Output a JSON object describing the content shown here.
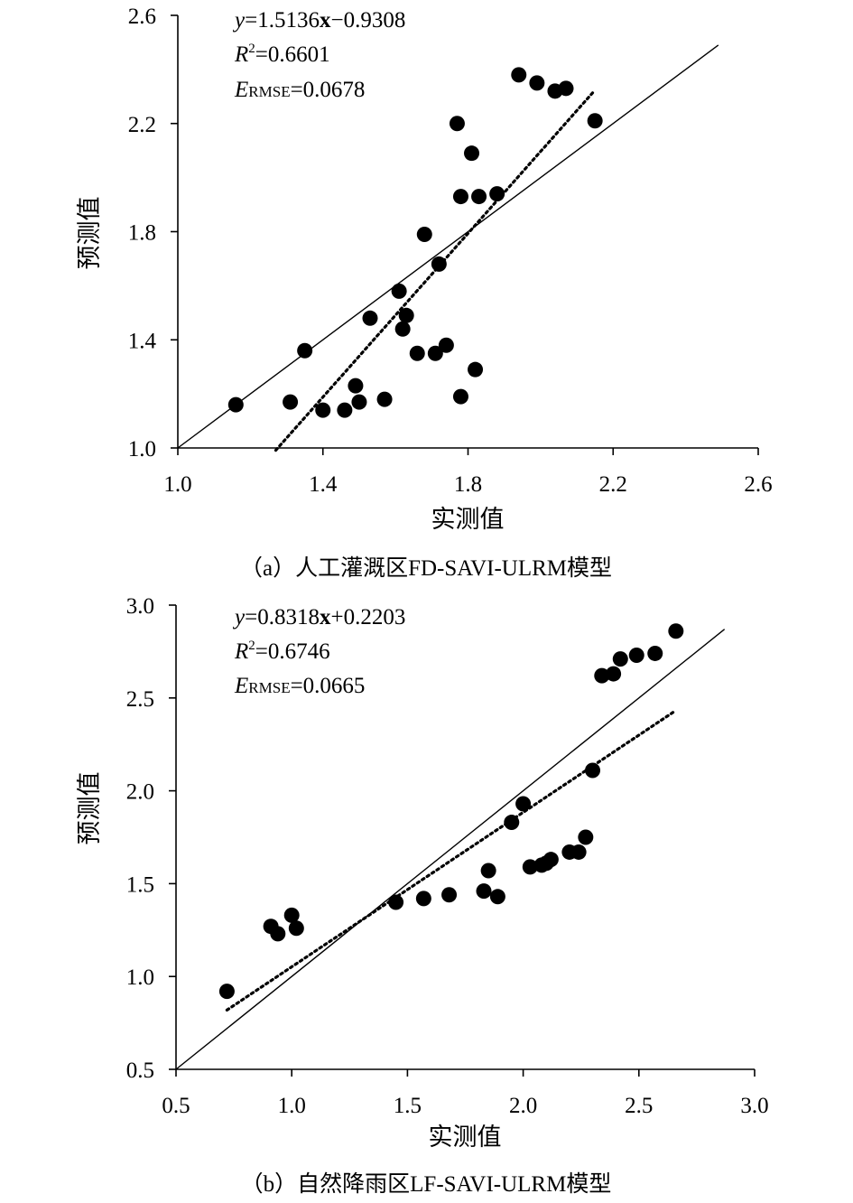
{
  "chart_data": [
    {
      "type": "scatter",
      "caption": "（a）人工灌溉区FD-SAVI-ULRM模型",
      "xlabel": "实测值",
      "ylabel": "预测值",
      "xlim": [
        1.0,
        2.6
      ],
      "ylim": [
        1.0,
        2.6
      ],
      "xticks": [
        "1.0",
        "1.4",
        "1.8",
        "2.2",
        "2.6"
      ],
      "yticks": [
        "1.0",
        "1.4",
        "1.8",
        "2.2",
        "2.6"
      ],
      "annotations": {
        "equation": {
          "y": "y",
          "eq_mid": "=1.5136",
          "x": "x",
          "eq_end": "−0.9308"
        },
        "r2": {
          "r": "R",
          "sup": "2",
          "value": "=0.6601"
        },
        "rmse": {
          "e": "E",
          "sub": "RMSE",
          "value": "=0.0678"
        }
      },
      "fit_line": {
        "slope": 1.5136,
        "intercept": -0.9308,
        "x_range": [
          1.27,
          2.15
        ]
      },
      "reference_line": {
        "slope": 1,
        "intercept": 0,
        "x_range": [
          1.0,
          2.49
        ]
      },
      "points": [
        [
          1.16,
          1.16
        ],
        [
          1.31,
          1.17
        ],
        [
          1.35,
          1.36
        ],
        [
          1.4,
          1.14
        ],
        [
          1.46,
          1.14
        ],
        [
          1.49,
          1.23
        ],
        [
          1.5,
          1.17
        ],
        [
          1.53,
          1.48
        ],
        [
          1.57,
          1.18
        ],
        [
          1.61,
          1.58
        ],
        [
          1.62,
          1.44
        ],
        [
          1.63,
          1.49
        ],
        [
          1.66,
          1.35
        ],
        [
          1.68,
          1.79
        ],
        [
          1.71,
          1.35
        ],
        [
          1.72,
          1.68
        ],
        [
          1.74,
          1.38
        ],
        [
          1.77,
          2.2
        ],
        [
          1.78,
          1.19
        ],
        [
          1.78,
          1.93
        ],
        [
          1.81,
          2.09
        ],
        [
          1.82,
          1.29
        ],
        [
          1.83,
          1.93
        ],
        [
          1.88,
          1.94
        ],
        [
          1.94,
          2.38
        ],
        [
          1.99,
          2.35
        ],
        [
          2.04,
          2.32
        ],
        [
          2.07,
          2.33
        ],
        [
          2.15,
          2.21
        ]
      ]
    },
    {
      "type": "scatter",
      "caption": "（b）自然降雨区LF-SAVI-ULRM模型",
      "xlabel": "实测值",
      "ylabel": "预测值",
      "xlim": [
        0.5,
        3.0
      ],
      "ylim": [
        0.5,
        3.0
      ],
      "xticks": [
        "0.5",
        "1.0",
        "1.5",
        "2.0",
        "2.5",
        "3.0"
      ],
      "yticks": [
        "0.5",
        "1.0",
        "1.5",
        "2.0",
        "2.5",
        "3.0"
      ],
      "annotations": {
        "equation": {
          "y": "y",
          "eq_mid": "=0.8318",
          "x": "x",
          "eq_end": "+0.2203"
        },
        "r2": {
          "r": "R",
          "sup": "2",
          "value": "=0.6746"
        },
        "rmse": {
          "e": "E",
          "sub": "RMSE",
          "value": "=0.0665"
        }
      },
      "fit_line": {
        "slope": 0.8318,
        "intercept": 0.2203,
        "x_range": [
          0.72,
          2.66
        ]
      },
      "reference_line": {
        "slope": 1,
        "intercept": 0,
        "x_range": [
          0.5,
          2.87
        ]
      },
      "points": [
        [
          0.72,
          0.92
        ],
        [
          0.91,
          1.27
        ],
        [
          0.94,
          1.23
        ],
        [
          1.0,
          1.33
        ],
        [
          1.02,
          1.26
        ],
        [
          1.45,
          1.4
        ],
        [
          1.57,
          1.42
        ],
        [
          1.68,
          1.44
        ],
        [
          1.83,
          1.46
        ],
        [
          1.85,
          1.57
        ],
        [
          1.89,
          1.43
        ],
        [
          1.95,
          1.83
        ],
        [
          2.0,
          1.93
        ],
        [
          2.03,
          1.59
        ],
        [
          2.08,
          1.6
        ],
        [
          2.1,
          1.61
        ],
        [
          2.12,
          1.63
        ],
        [
          2.2,
          1.67
        ],
        [
          2.24,
          1.67
        ],
        [
          2.27,
          1.75
        ],
        [
          2.3,
          2.11
        ],
        [
          2.34,
          2.62
        ],
        [
          2.39,
          2.63
        ],
        [
          2.42,
          2.71
        ],
        [
          2.49,
          2.73
        ],
        [
          2.57,
          2.74
        ],
        [
          2.66,
          2.86
        ]
      ]
    }
  ]
}
